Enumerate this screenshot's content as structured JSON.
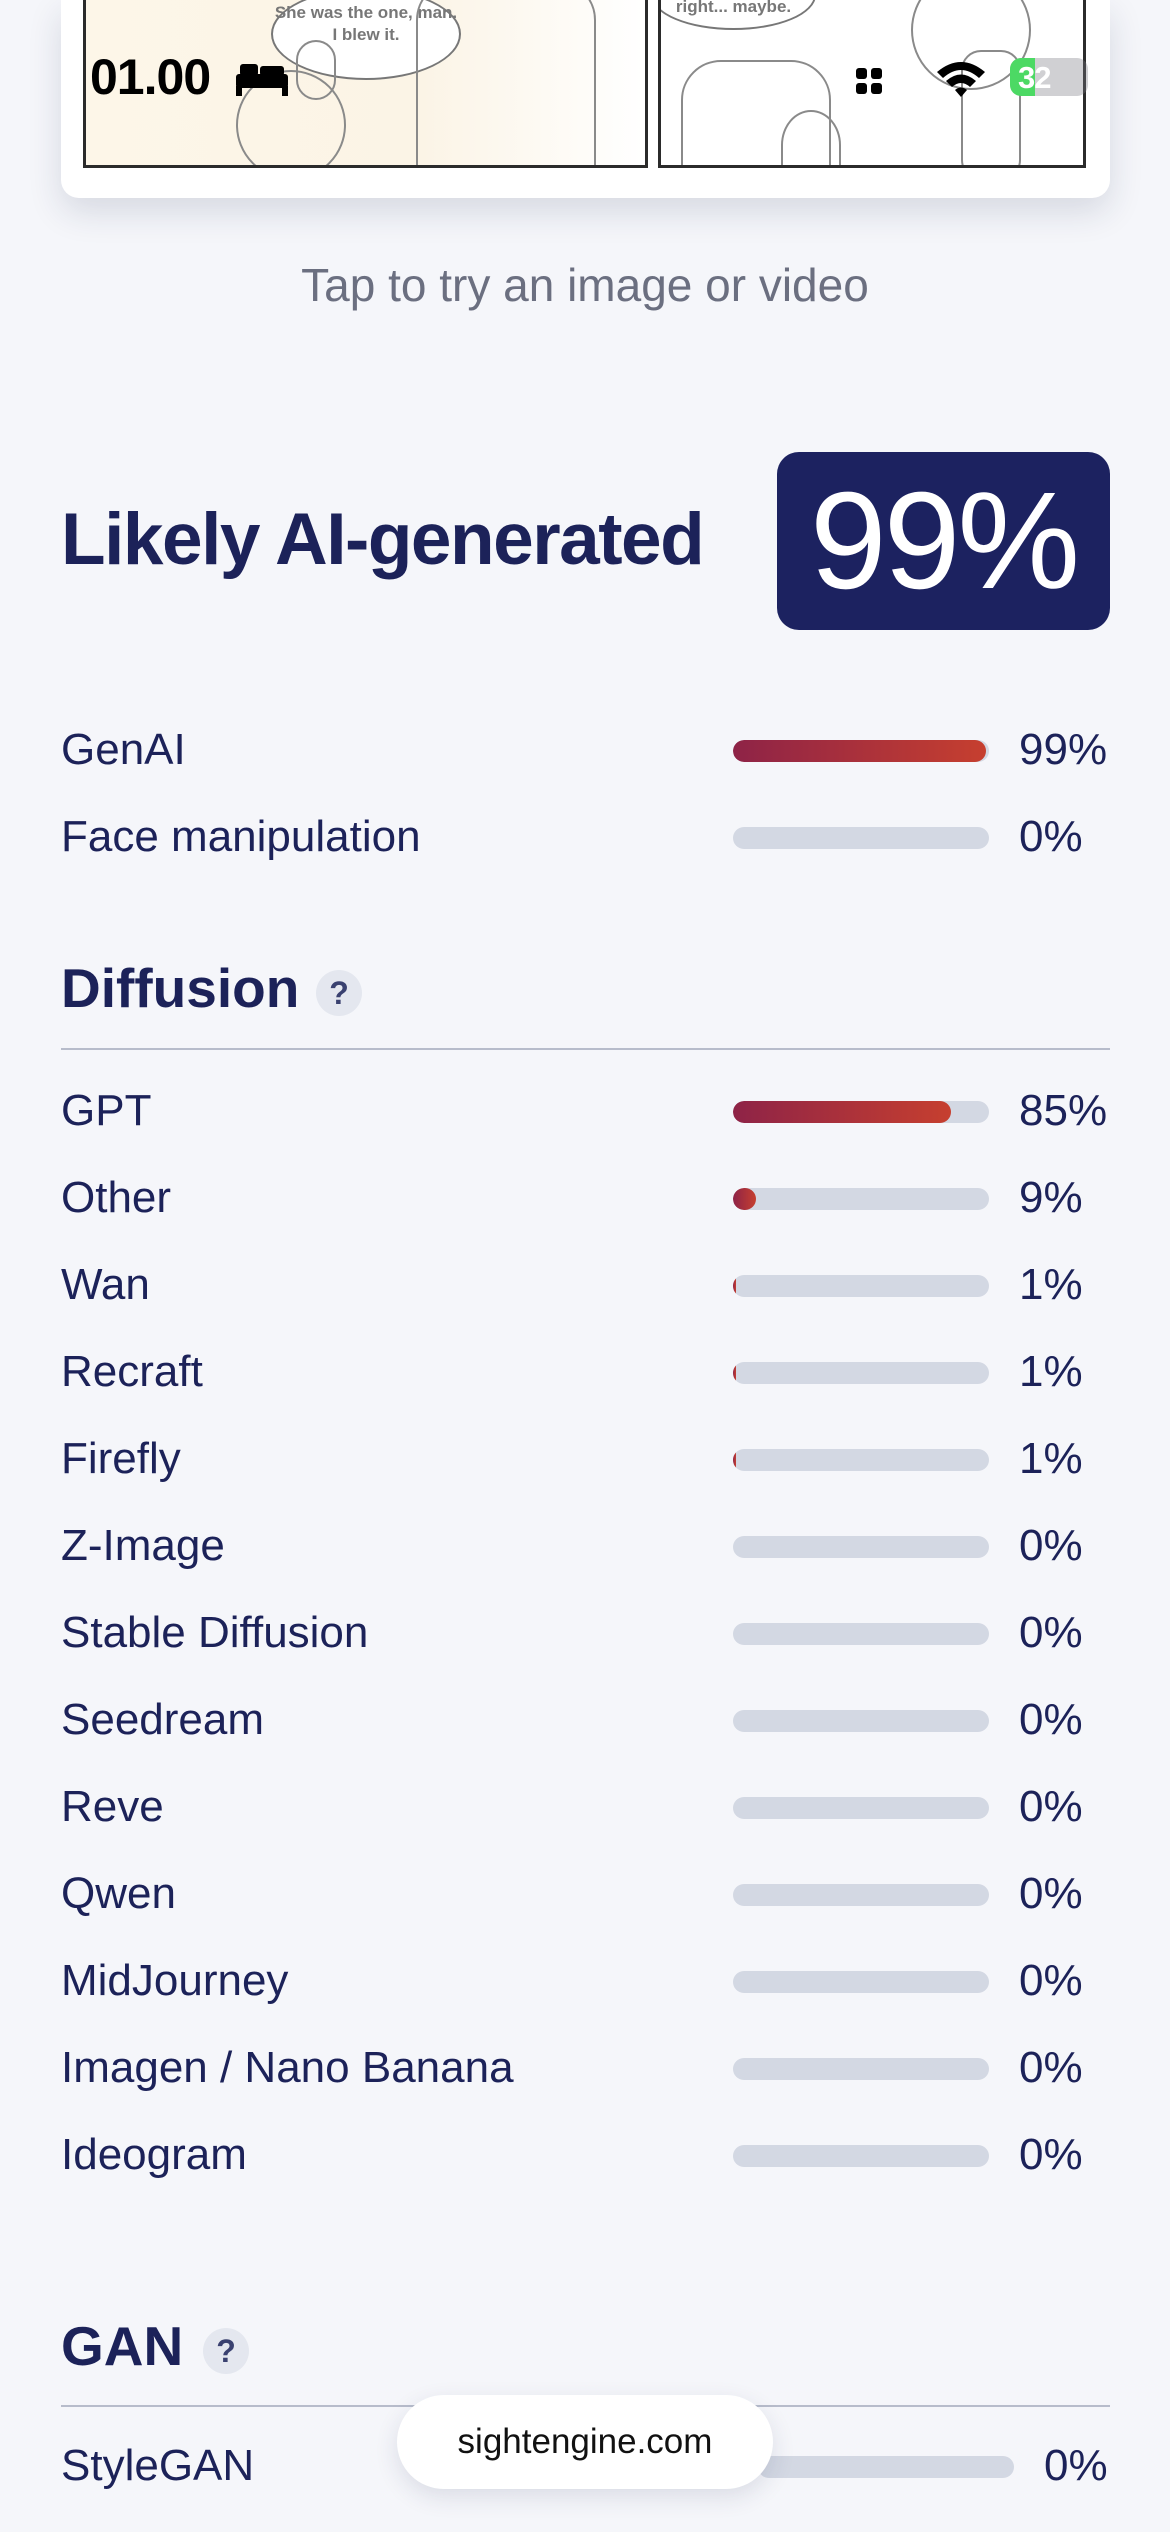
{
  "status_bar": {
    "time": "01.00",
    "battery_level": 32,
    "battery_text": "32"
  },
  "preview": {
    "bubble_left": "She was the one, man. I blew it.",
    "bubble_right": "right... maybe."
  },
  "hint": "Tap to try an image or video",
  "verdict": {
    "label": "Likely AI-generated",
    "score": "99%"
  },
  "summary": [
    {
      "label": "GenAI",
      "value": 99,
      "pct": "99%"
    },
    {
      "label": "Face manipulation",
      "value": 0,
      "pct": "0%"
    }
  ],
  "diffusion": {
    "title": "Diffusion",
    "help": "?",
    "items": [
      {
        "label": "GPT",
        "value": 85,
        "pct": "85%"
      },
      {
        "label": "Other",
        "value": 9,
        "pct": "9%"
      },
      {
        "label": "Wan",
        "value": 1,
        "pct": "1%"
      },
      {
        "label": "Recraft",
        "value": 1,
        "pct": "1%"
      },
      {
        "label": "Firefly",
        "value": 1,
        "pct": "1%"
      },
      {
        "label": "Z-Image",
        "value": 0,
        "pct": "0%"
      },
      {
        "label": "Stable Diffusion",
        "value": 0,
        "pct": "0%"
      },
      {
        "label": "Seedream",
        "value": 0,
        "pct": "0%"
      },
      {
        "label": "Reve",
        "value": 0,
        "pct": "0%"
      },
      {
        "label": "Qwen",
        "value": 0,
        "pct": "0%"
      },
      {
        "label": "MidJourney",
        "value": 0,
        "pct": "0%"
      },
      {
        "label": "Imagen / Nano Banana",
        "value": 0,
        "pct": "0%"
      },
      {
        "label": "Ideogram",
        "value": 0,
        "pct": "0%"
      }
    ]
  },
  "gan": {
    "title": "GAN",
    "help": "?",
    "items": [
      {
        "label": "StyleGAN",
        "value": 0,
        "pct": "0%"
      }
    ]
  },
  "footer": {
    "site": "sightengine.com"
  },
  "colors": {
    "navy": "#1c2260",
    "bar_start": "#8e2347",
    "bar_end": "#c63f2f",
    "track": "#d3d8e3",
    "background": "#f5f6fa"
  }
}
